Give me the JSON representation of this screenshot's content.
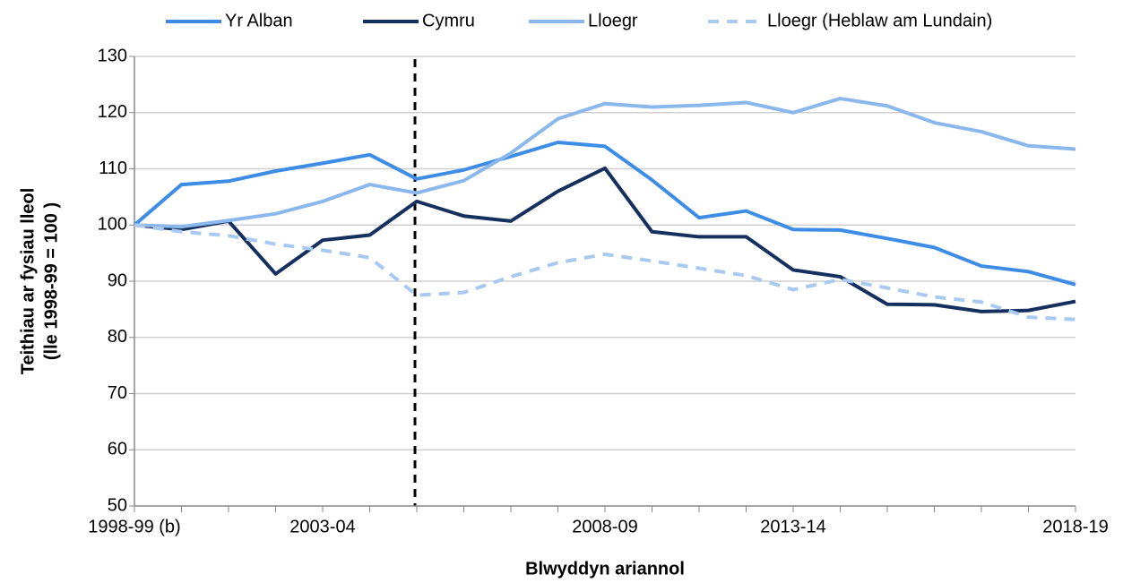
{
  "chart_data": {
    "type": "line",
    "ylabel": [
      "Teithiau ar fysiau lleol",
      "(lle 1998-99 = 100 )"
    ],
    "xlabel": "Blwyddyn ariannol",
    "categories": [
      "1998-99 (b)",
      null,
      null,
      null,
      "2003-04",
      null,
      null,
      null,
      null,
      null,
      "2008-09",
      null,
      null,
      null,
      "2013-14",
      null,
      null,
      null,
      null,
      null,
      "2018-19"
    ],
    "ylim": [
      50,
      130
    ],
    "yticks": [
      50,
      60,
      70,
      80,
      90,
      100,
      110,
      120,
      130
    ],
    "grid": true,
    "series": [
      {
        "name": "Yr Alban",
        "color": "#3d8ce6",
        "dashed": false,
        "values": [
          100,
          107.2,
          107.8,
          109.6,
          111,
          112.5,
          108.2,
          109.8,
          112.2,
          114.7,
          114,
          108,
          101.3,
          102.5,
          99.2,
          99.1,
          97.6,
          96,
          92.7,
          91.7,
          89.4
        ]
      },
      {
        "name": "Cymru",
        "color": "#15305e",
        "dashed": false,
        "values": [
          100,
          99.2,
          100.7,
          91.3,
          97.3,
          98.2,
          104.2,
          101.6,
          100.7,
          106,
          110.1,
          98.8,
          97.9,
          97.9,
          92,
          90.8,
          85.9,
          85.8,
          84.6,
          84.8,
          86.4
        ]
      },
      {
        "name": "Lloegr",
        "color": "#8ab8ec",
        "dashed": false,
        "values": [
          100,
          99.7,
          100.8,
          102,
          104.2,
          107.2,
          105.7,
          107.9,
          112.8,
          118.9,
          121.6,
          121,
          121.3,
          121.8,
          120,
          122.5,
          121.2,
          118.2,
          116.6,
          114.1,
          113.5
        ]
      },
      {
        "name": "Lloegr (Heblaw am Lundain)",
        "color": "#a9c9f0",
        "dashed": true,
        "values": [
          100,
          98.8,
          98.1,
          96.6,
          95.5,
          94.2,
          87.5,
          88,
          90.8,
          93.3,
          94.8,
          93.6,
          92.3,
          91,
          88.5,
          90.3,
          88.8,
          87.2,
          86.3,
          83.6,
          83.2
        ]
      }
    ]
  }
}
